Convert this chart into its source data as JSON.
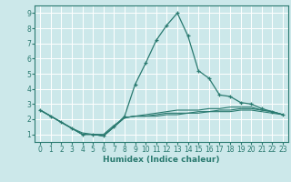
{
  "xlabel": "Humidex (Indice chaleur)",
  "ylabel": "",
  "xlim": [
    -0.5,
    23.5
  ],
  "ylim": [
    0.5,
    9.5
  ],
  "xticks": [
    0,
    1,
    2,
    3,
    4,
    5,
    6,
    7,
    8,
    9,
    10,
    11,
    12,
    13,
    14,
    15,
    16,
    17,
    18,
    19,
    20,
    21,
    22,
    23
  ],
  "yticks": [
    1,
    2,
    3,
    4,
    5,
    6,
    7,
    8,
    9
  ],
  "bg_color": "#cce8ea",
  "line_color": "#2a7a70",
  "grid_color": "#ffffff",
  "lines": [
    {
      "x": [
        0,
        1,
        2,
        3,
        4,
        5,
        6,
        7,
        8,
        9,
        10,
        11,
        12,
        13,
        14,
        15,
        16,
        17,
        18,
        19,
        20,
        21,
        22,
        23
      ],
      "y": [
        2.6,
        2.2,
        1.8,
        1.4,
        1.0,
        1.0,
        0.9,
        1.5,
        2.2,
        4.3,
        5.7,
        7.2,
        8.2,
        9.0,
        7.5,
        5.2,
        4.7,
        3.6,
        3.5,
        3.1,
        3.0,
        2.7,
        2.5,
        2.3
      ],
      "marker": true
    },
    {
      "x": [
        0,
        1,
        2,
        3,
        4,
        5,
        6,
        7,
        8,
        9,
        10,
        11,
        12,
        13,
        14,
        15,
        16,
        17,
        18,
        19,
        20,
        21,
        22,
        23
      ],
      "y": [
        2.6,
        2.2,
        1.8,
        1.4,
        1.0,
        1.0,
        0.9,
        1.5,
        2.1,
        2.2,
        2.3,
        2.4,
        2.5,
        2.6,
        2.6,
        2.6,
        2.7,
        2.7,
        2.8,
        2.8,
        2.8,
        2.6,
        2.5,
        2.3
      ],
      "marker": false
    },
    {
      "x": [
        0,
        1,
        2,
        3,
        4,
        5,
        6,
        7,
        8,
        9,
        10,
        11,
        12,
        13,
        14,
        15,
        16,
        17,
        18,
        19,
        20,
        21,
        22,
        23
      ],
      "y": [
        2.6,
        2.2,
        1.8,
        1.4,
        1.0,
        1.0,
        0.9,
        1.5,
        2.1,
        2.2,
        2.2,
        2.3,
        2.4,
        2.4,
        2.4,
        2.5,
        2.5,
        2.6,
        2.6,
        2.7,
        2.7,
        2.6,
        2.5,
        2.3
      ],
      "marker": false
    },
    {
      "x": [
        0,
        1,
        2,
        3,
        4,
        5,
        6,
        7,
        8,
        9,
        10,
        11,
        12,
        13,
        14,
        15,
        16,
        17,
        18,
        19,
        20,
        21,
        22,
        23
      ],
      "y": [
        2.6,
        2.2,
        1.8,
        1.4,
        1.1,
        1.0,
        1.0,
        1.6,
        2.1,
        2.2,
        2.2,
        2.2,
        2.3,
        2.3,
        2.4,
        2.4,
        2.5,
        2.5,
        2.5,
        2.6,
        2.6,
        2.5,
        2.4,
        2.3
      ],
      "marker": false
    }
  ],
  "xlabel_fontsize": 6.5,
  "tick_fontsize": 5.5
}
